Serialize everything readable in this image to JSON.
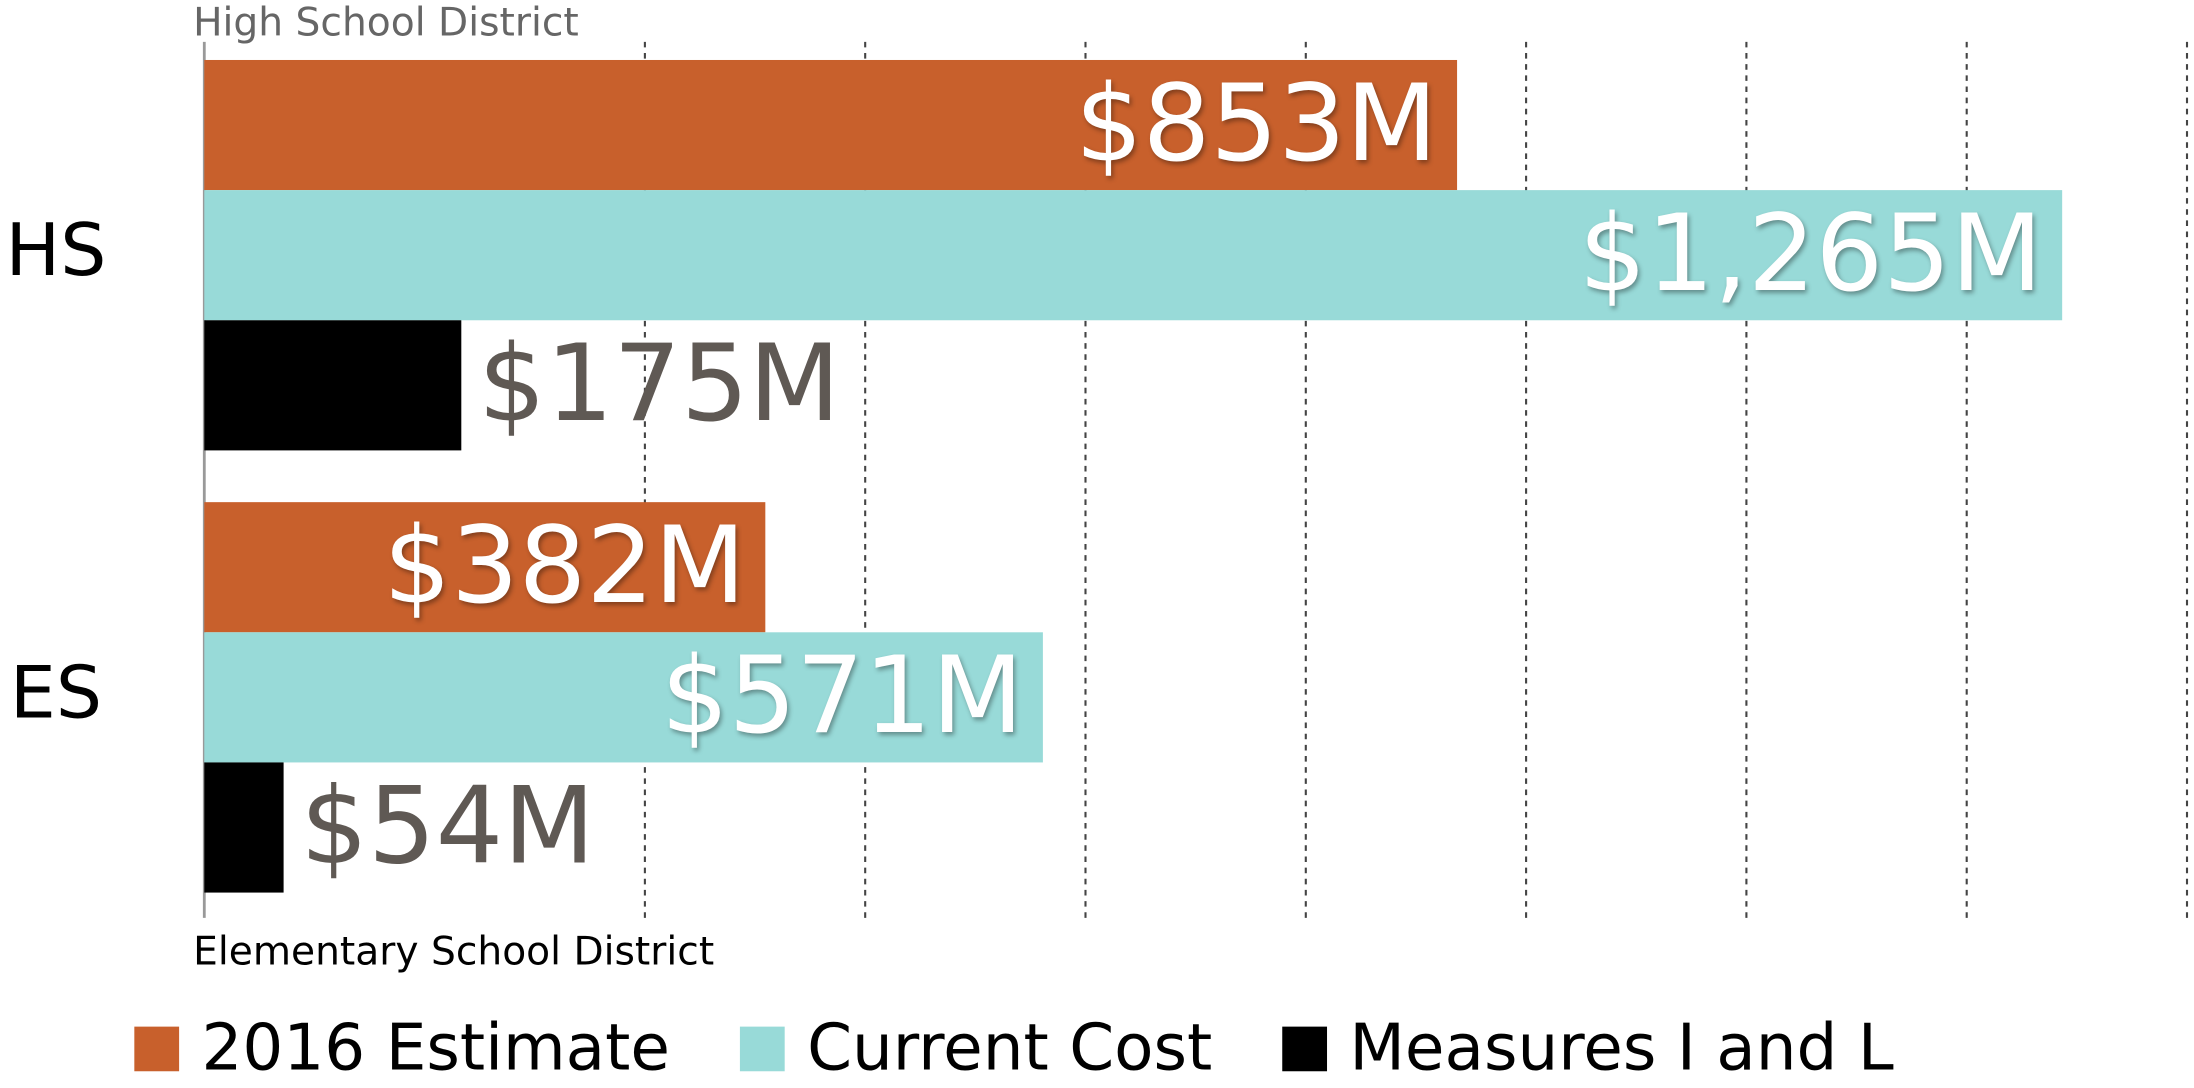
{
  "chart_data": {
    "type": "hbar",
    "annotations": [
      "High School District",
      "Elementary School District"
    ],
    "categories": [
      "HS",
      "ES"
    ],
    "series": [
      {
        "name": "2016 Estimate",
        "color": "#c8602c",
        "values": [
          853,
          382
        ],
        "value_labels": [
          "$853M",
          "$382M"
        ]
      },
      {
        "name": "Current Cost",
        "color": "#98dad8",
        "values": [
          1265,
          571
        ],
        "value_labels": [
          "$1,265M",
          "$571M"
        ]
      },
      {
        "name": "Measures I and L",
        "color": "#000000",
        "values": [
          175,
          54
        ],
        "value_labels": [
          "$175M",
          "$54M"
        ]
      }
    ],
    "xlim": [
      0,
      1350
    ],
    "xticks": [
      0,
      300,
      450,
      600,
      750,
      900,
      1050,
      1200,
      1350
    ],
    "grid": true,
    "legend": "bottom"
  }
}
